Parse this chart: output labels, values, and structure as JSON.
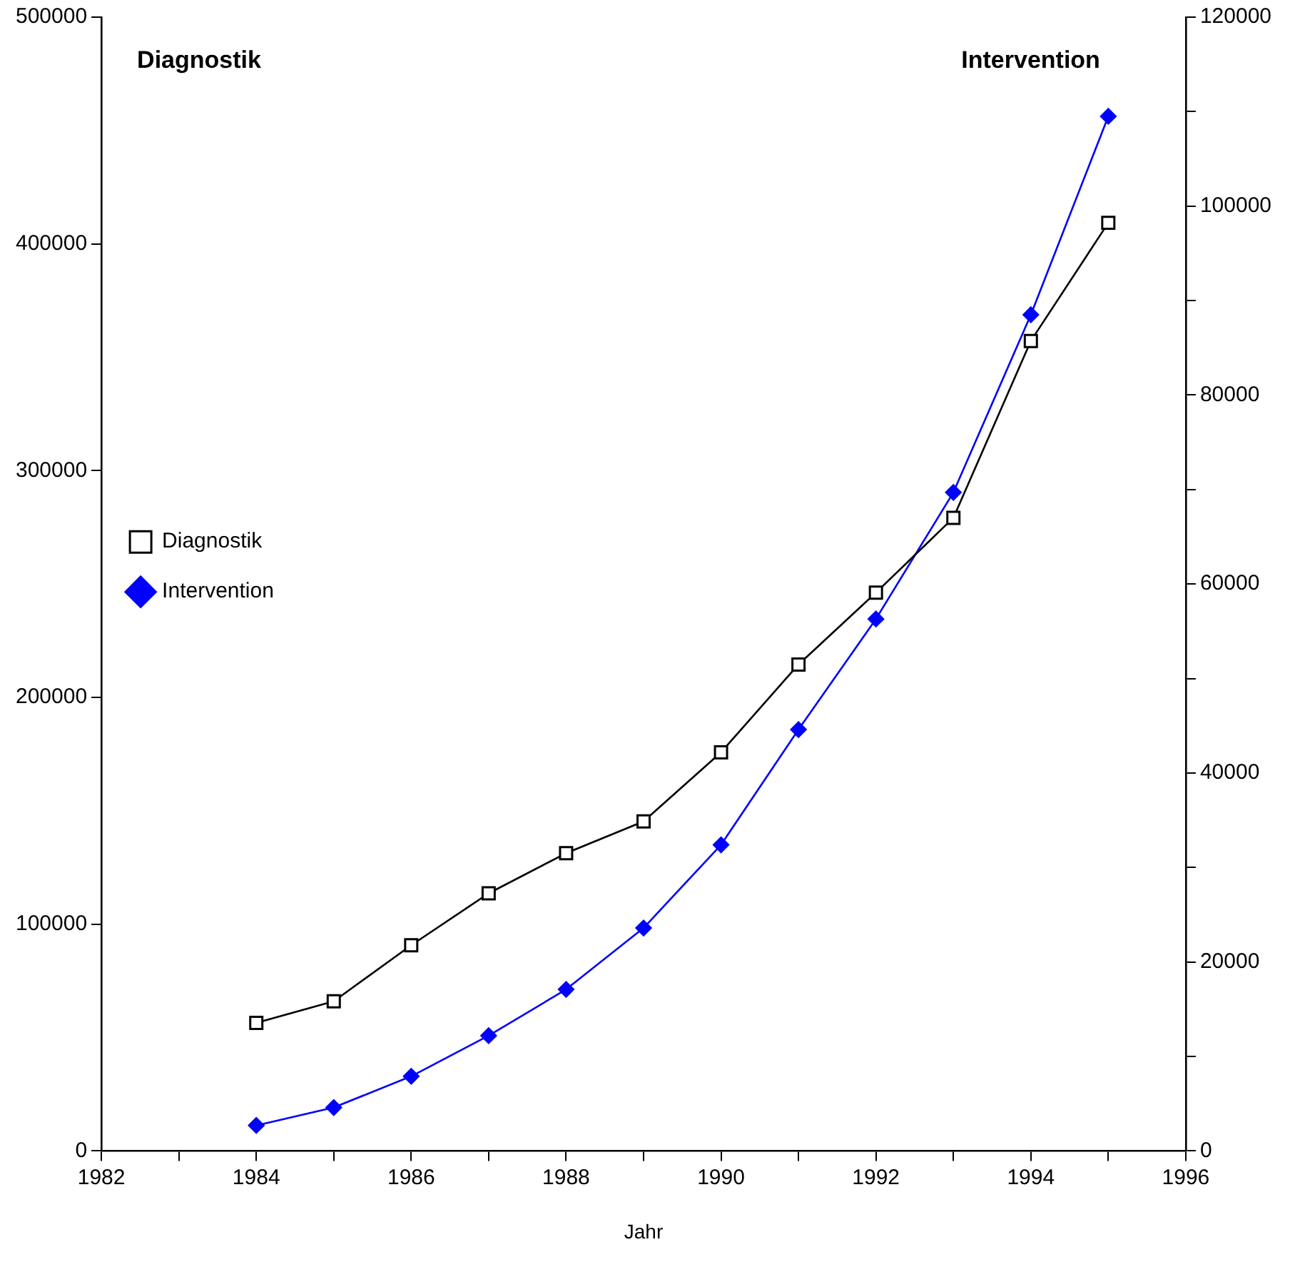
{
  "chart_data": {
    "type": "line",
    "xlabel": "Jahr",
    "ylabel": "Diagnostik",
    "y2label": "Intervention",
    "xlim": [
      1982,
      1996
    ],
    "xticks": [
      1982,
      {
        "value": 1983,
        "label": null
      },
      1984,
      {
        "value": 1985,
        "label": null
      },
      1986,
      {
        "value": 1987,
        "label": null
      },
      1988,
      {
        "value": 1989,
        "label": null
      },
      1990,
      {
        "value": 1991,
        "label": null
      },
      1992,
      {
        "value": 1993,
        "label": null
      },
      1994,
      {
        "value": 1995,
        "label": null
      },
      1996
    ],
    "ylim": [
      0,
      500000
    ],
    "yticks": [
      0,
      100000,
      200000,
      300000,
      400000,
      500000
    ],
    "y2lim": [
      0,
      120000
    ],
    "y2ticks": [
      0,
      {
        "value": 10000,
        "label": null
      },
      20000,
      {
        "value": 30000,
        "label": null
      },
      40000,
      {
        "value": 50000,
        "label": null
      },
      60000,
      {
        "value": 70000,
        "label": null
      },
      80000,
      {
        "value": 90000,
        "label": null
      },
      100000,
      {
        "value": 110000,
        "label": null
      },
      120000
    ],
    "x": [
      1984,
      1985,
      1986,
      1987,
      1988,
      1989,
      1990,
      1991,
      1992,
      1993,
      1994,
      1995
    ],
    "series": [
      {
        "name": "Diagnostik",
        "color": "#000000",
        "marker": "square",
        "values": [
          56500,
          66000,
          90700,
          113600,
          131300,
          145300,
          175800,
          214500,
          246200,
          279200,
          357200,
          409300
        ]
      },
      {
        "name": "Intervention",
        "color": "#0000ff",
        "marker": "diamond",
        "axis": "y2",
        "values": [
          2700,
          4600,
          7900,
          12200,
          17100,
          23600,
          32400,
          44600,
          56300,
          69700,
          88500,
          109500
        ]
      }
    ],
    "grid": false,
    "legend": "top",
    "line_style": "solid"
  }
}
